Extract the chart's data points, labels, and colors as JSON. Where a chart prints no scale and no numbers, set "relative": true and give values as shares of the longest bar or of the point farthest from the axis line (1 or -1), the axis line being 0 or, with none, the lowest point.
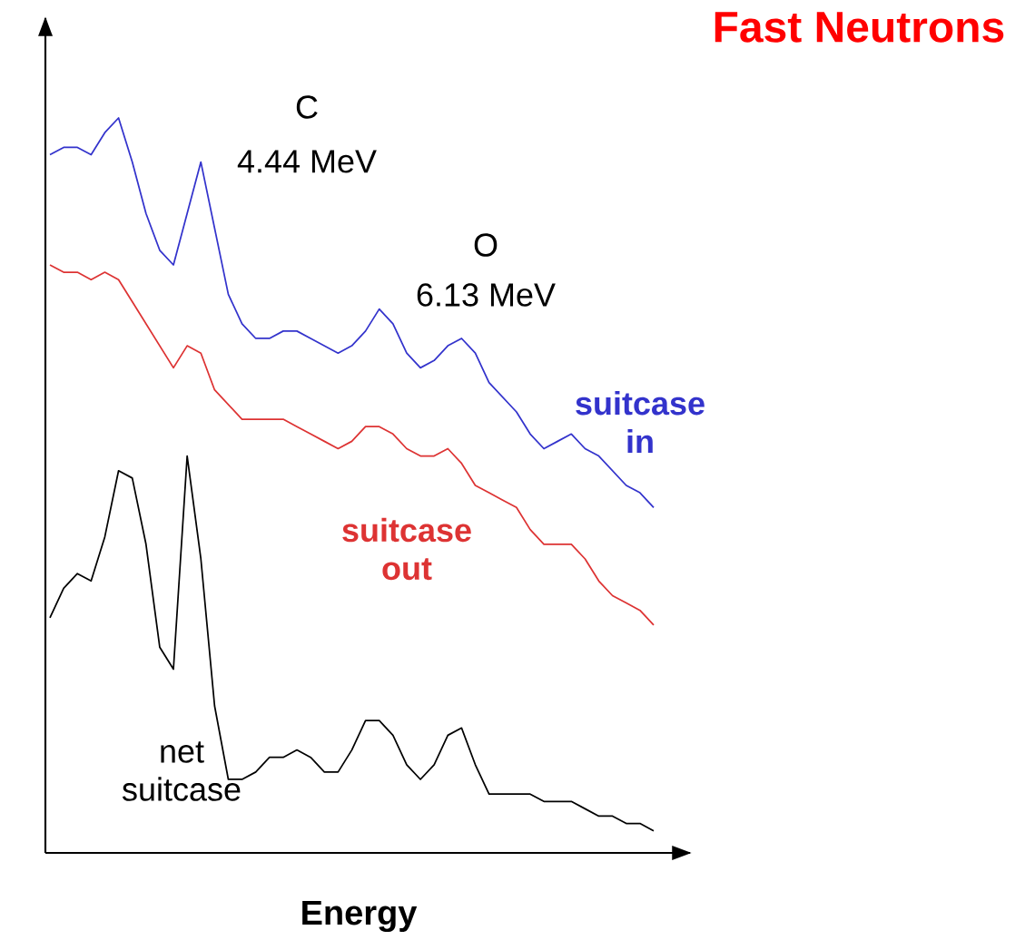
{
  "chart_data": {
    "type": "line",
    "title": "Fast Neutrons",
    "xlabel": "Energy",
    "relative": true,
    "categories": [
      null,
      null,
      null,
      null,
      null,
      null,
      null,
      null,
      null,
      null,
      null,
      null,
      null,
      null,
      null,
      null,
      null,
      null,
      null,
      null,
      null,
      null,
      null,
      null,
      null,
      null,
      null,
      null,
      null,
      null,
      null,
      null,
      null,
      null,
      null,
      null,
      null,
      null,
      null,
      null,
      null,
      null,
      null,
      null,
      null
    ],
    "series": [
      {
        "name": "suitcase in",
        "color": "#3333cc",
        "values": [
          0.95,
          0.96,
          0.96,
          0.95,
          0.98,
          1.0,
          0.94,
          0.87,
          0.82,
          0.8,
          0.87,
          0.94,
          0.85,
          0.76,
          0.72,
          0.7,
          0.7,
          0.71,
          0.71,
          0.7,
          0.69,
          0.68,
          0.69,
          0.71,
          0.74,
          0.72,
          0.68,
          0.66,
          0.67,
          0.69,
          0.7,
          0.68,
          0.64,
          0.62,
          0.6,
          0.57,
          0.55,
          0.56,
          0.57,
          0.55,
          0.54,
          0.52,
          0.5,
          0.49,
          0.47
        ]
      },
      {
        "name": "suitcase out",
        "color": "#dd3333",
        "values": [
          0.8,
          0.79,
          0.79,
          0.78,
          0.79,
          0.78,
          0.75,
          0.72,
          0.69,
          0.66,
          0.69,
          0.68,
          0.63,
          0.61,
          0.59,
          0.59,
          0.59,
          0.59,
          0.58,
          0.57,
          0.56,
          0.55,
          0.56,
          0.58,
          0.58,
          0.57,
          0.55,
          0.54,
          0.54,
          0.55,
          0.53,
          0.5,
          0.49,
          0.48,
          0.47,
          0.44,
          0.42,
          0.42,
          0.42,
          0.4,
          0.37,
          0.35,
          0.34,
          0.33,
          0.31
        ]
      },
      {
        "name": "net suitcase",
        "color": "#000000",
        "values": [
          0.32,
          0.36,
          0.38,
          0.37,
          0.43,
          0.52,
          0.51,
          0.42,
          0.28,
          0.25,
          0.54,
          0.4,
          0.2,
          0.1,
          0.1,
          0.11,
          0.13,
          0.13,
          0.14,
          0.13,
          0.11,
          0.11,
          0.14,
          0.18,
          0.18,
          0.16,
          0.12,
          0.1,
          0.12,
          0.16,
          0.17,
          0.12,
          0.08,
          0.08,
          0.08,
          0.08,
          0.07,
          0.07,
          0.07,
          0.06,
          0.05,
          0.05,
          0.04,
          0.04,
          0.03
        ]
      }
    ],
    "annotations": [
      "C",
      "4.44 MeV",
      "O",
      "6.13 MeV"
    ],
    "marker": "none",
    "line_style": "solid"
  }
}
